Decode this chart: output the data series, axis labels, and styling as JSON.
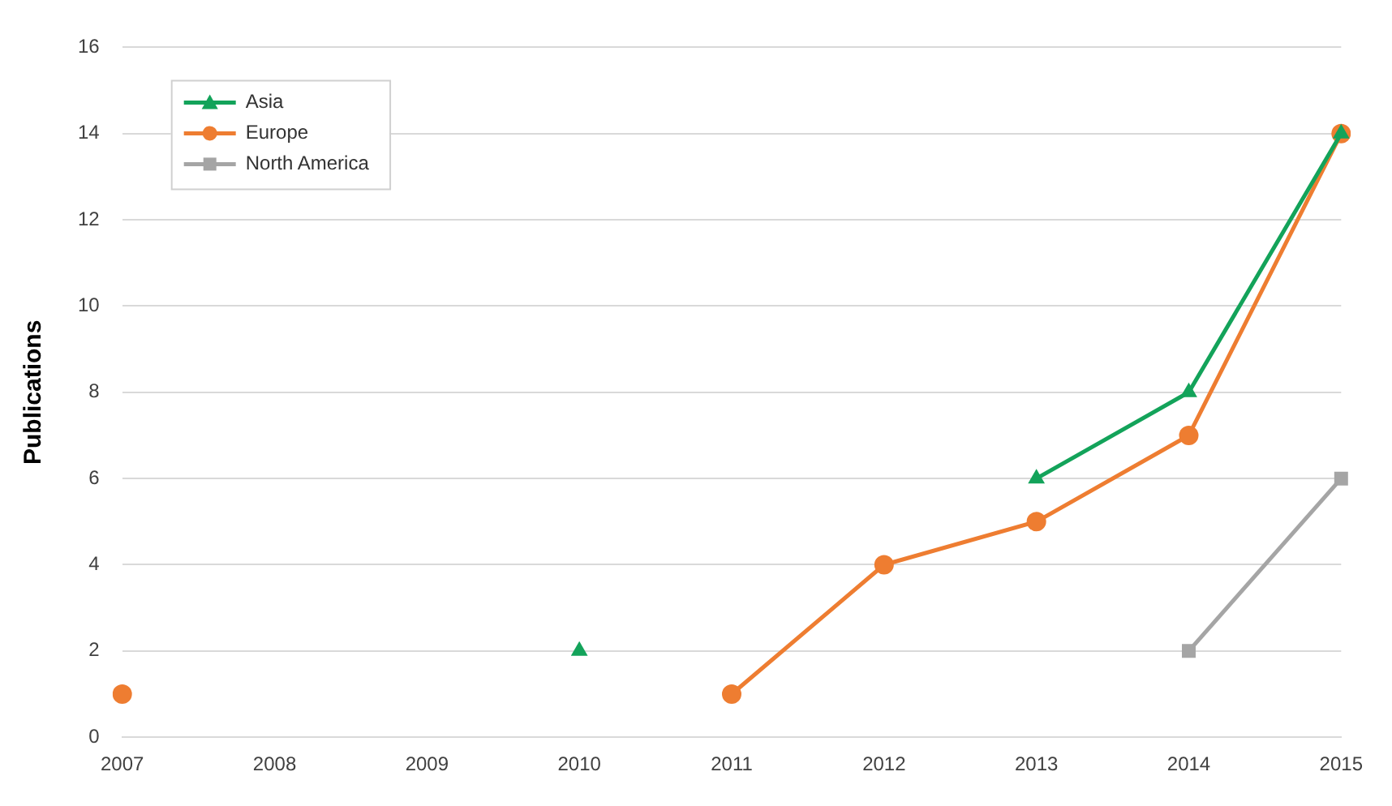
{
  "chart_data": {
    "type": "line",
    "ylabel": "Publications",
    "categories": [
      "2007",
      "2008",
      "2009",
      "2010",
      "2011",
      "2012",
      "2013",
      "2014",
      "2015"
    ],
    "series": [
      {
        "name": "Asia",
        "color": "#13a35a",
        "marker": "triangle",
        "values": [
          null,
          null,
          null,
          2,
          null,
          null,
          6,
          8,
          14
        ]
      },
      {
        "name": "Europe",
        "color": "#ee7d31",
        "marker": "circle",
        "values": [
          1,
          null,
          null,
          null,
          1,
          4,
          5,
          7,
          14
        ]
      },
      {
        "name": "North America",
        "color": "#a5a5a5",
        "marker": "square",
        "values": [
          null,
          null,
          null,
          null,
          null,
          null,
          null,
          2,
          6
        ]
      }
    ],
    "ylim": [
      0,
      16
    ],
    "yticks": [
      0,
      2,
      4,
      6,
      8,
      10,
      12,
      14,
      16
    ],
    "grid": "y",
    "legend": "top left"
  }
}
